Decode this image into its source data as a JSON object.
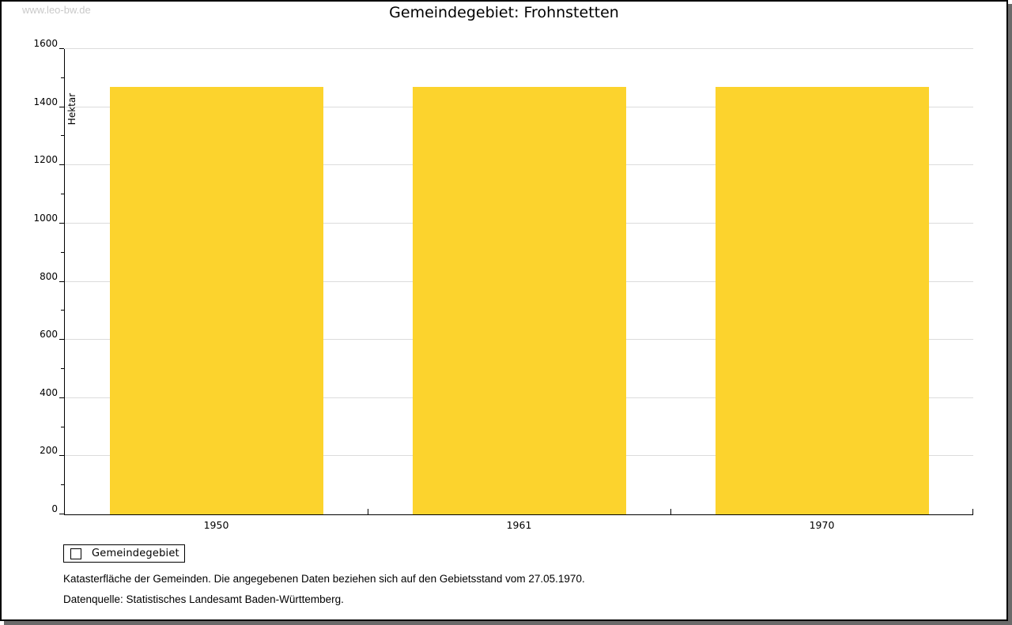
{
  "watermark": "www.leo-bw.de",
  "header": {
    "title": "Gemeindegebiet: Frohnstetten"
  },
  "chart_data": {
    "type": "bar",
    "title": "Gemeindegebiet: Frohnstetten",
    "categories": [
      "1950",
      "1961",
      "1970"
    ],
    "series": [
      {
        "name": "Gemeindegebiet",
        "values": [
          1470,
          1470,
          1470
        ]
      }
    ],
    "xlabel": "",
    "ylabel": "Hektar",
    "ylim": [
      0,
      1600
    ],
    "ytick_step": 200,
    "yticks": [
      0,
      200,
      400,
      600,
      800,
      1000,
      1200,
      1400,
      1600
    ],
    "minor_tick_step": 100,
    "grid": "horizontal",
    "bar_color": "#fcd32d",
    "gridline_color": "#dcdcdc",
    "legend_position": "bottom-left"
  },
  "legend": {
    "label": "Gemeindegebiet",
    "swatch_color": "#fcd32d"
  },
  "footnotes": {
    "line1": "Katasterfläche der Gemeinden. Die angegebenen Daten beziehen sich auf den Gebietsstand vom 27.05.1970.",
    "line2": "Datenquelle: Statistisches Landesamt Baden-Württemberg."
  }
}
